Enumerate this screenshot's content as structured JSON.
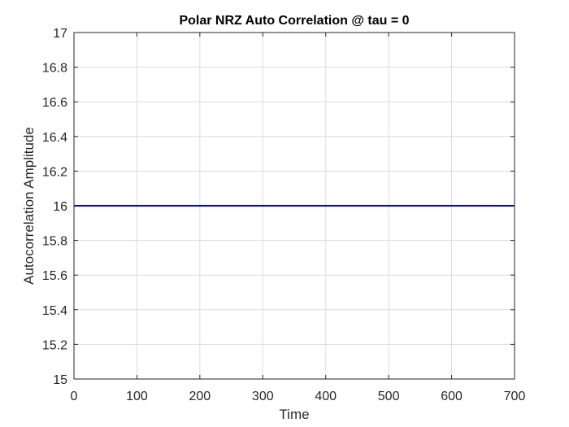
{
  "chart_data": {
    "type": "line",
    "title": "Polar NRZ Auto Correlation @ tau = 0",
    "xlabel": "Time",
    "ylabel": "Autocorrelation Amplitude",
    "xlim": [
      0,
      700
    ],
    "ylim": [
      15,
      17
    ],
    "xticks": [
      0,
      100,
      200,
      300,
      400,
      500,
      600,
      700
    ],
    "yticks": [
      15,
      15.2,
      15.4,
      15.6,
      15.8,
      16,
      16.2,
      16.4,
      16.6,
      16.8,
      17
    ],
    "grid": true,
    "series": [
      {
        "color": "#0000ff",
        "x": [
          0,
          700
        ],
        "y": [
          16,
          16
        ]
      }
    ]
  }
}
